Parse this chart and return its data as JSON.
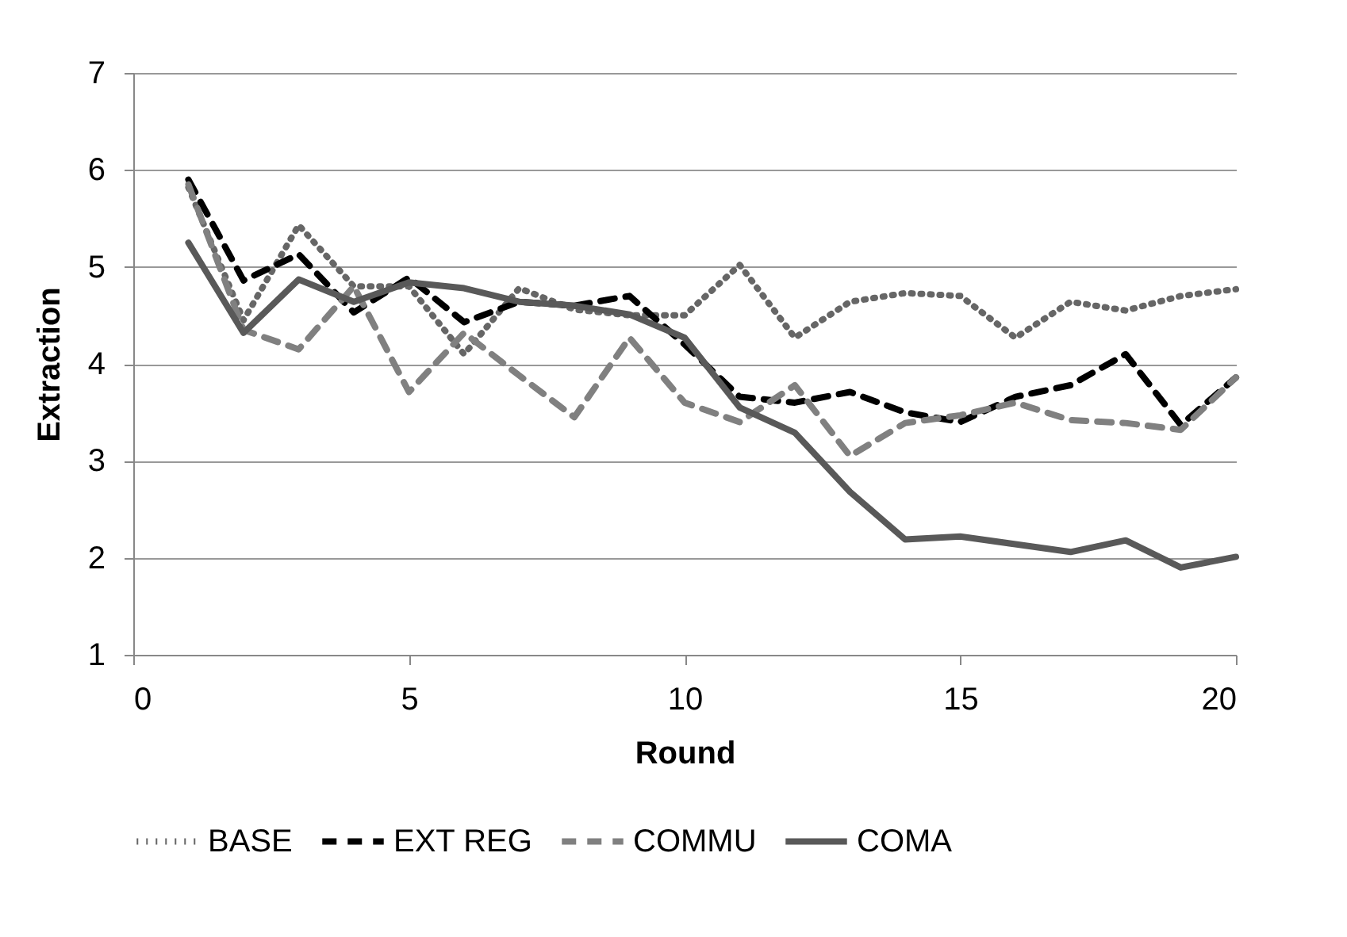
{
  "chart_data": {
    "type": "line",
    "xlabel": "Round",
    "ylabel": "Extraction",
    "x": [
      1,
      2,
      3,
      4,
      5,
      6,
      7,
      8,
      9,
      10,
      11,
      12,
      13,
      14,
      15,
      16,
      17,
      18,
      19,
      20
    ],
    "xlim": [
      0,
      20
    ],
    "xticks": [
      0,
      5,
      10,
      15,
      20
    ],
    "ylim": [
      1,
      7
    ],
    "yticks": [
      1,
      2,
      3,
      4,
      5,
      6,
      7
    ],
    "grid": "y",
    "legend": "bottom",
    "marker": "none",
    "series": [
      {
        "name": "BASE",
        "color": "#666666",
        "line_style": "dotted",
        "values": [
          5.82,
          4.45,
          5.43,
          4.8,
          4.8,
          4.1,
          4.78,
          4.56,
          4.5,
          4.5,
          5.02,
          4.27,
          4.64,
          4.73,
          4.7,
          4.27,
          4.64,
          4.55,
          4.7,
          4.77
        ]
      },
      {
        "name": "EXT REG",
        "color": "#000000",
        "line_style": "dashed",
        "values": [
          5.9,
          4.86,
          5.13,
          4.53,
          4.89,
          4.43,
          4.64,
          4.6,
          4.7,
          4.2,
          3.66,
          3.6,
          3.71,
          3.5,
          3.4,
          3.66,
          3.78,
          4.1,
          3.37,
          3.86
        ]
      },
      {
        "name": "COMMU",
        "color": "#808080",
        "line_style": "dashed",
        "values": [
          5.85,
          4.35,
          4.15,
          4.8,
          3.71,
          4.32,
          3.88,
          3.45,
          4.27,
          3.6,
          3.4,
          3.78,
          3.05,
          3.39,
          3.47,
          3.6,
          3.42,
          3.39,
          3.32,
          3.86
        ]
      },
      {
        "name": "COMA",
        "color": "#595959",
        "line_style": "solid",
        "values": [
          5.25,
          4.32,
          4.87,
          4.64,
          4.84,
          4.78,
          4.64,
          4.6,
          4.51,
          4.27,
          3.55,
          3.29,
          2.68,
          2.19,
          2.22,
          2.14,
          2.06,
          2.18,
          1.9,
          2.01
        ]
      }
    ]
  }
}
